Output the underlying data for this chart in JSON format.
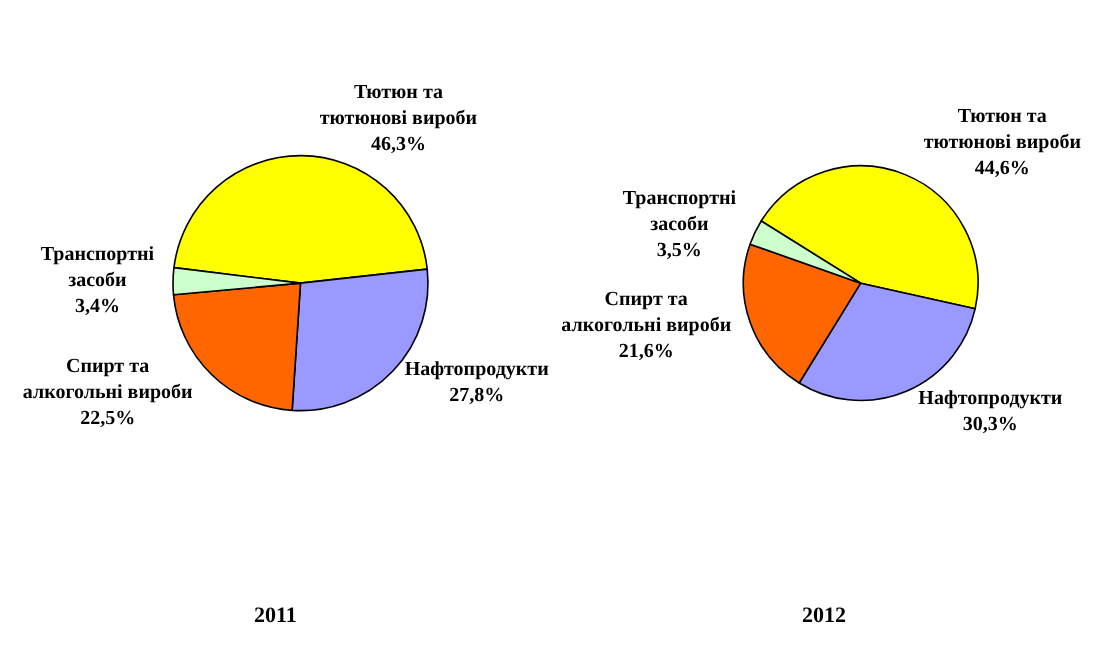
{
  "chart_data": [
    {
      "type": "pie",
      "title": "2011",
      "categories": [
        "Тютюн та тютюнові вироби",
        "Нафтопродукти",
        "Спирт та алкогольні вироби",
        "Транспортні засоби"
      ],
      "values": [
        46.3,
        27.8,
        22.5,
        3.4
      ],
      "value_labels": [
        "46,3%",
        "27,8%",
        "22,5%",
        "3,4%"
      ],
      "colors": [
        "#ffff00",
        "#9999ff",
        "#ff6600",
        "#ccffcc"
      ],
      "legend": false
    },
    {
      "type": "pie",
      "title": "2012",
      "categories": [
        "Тютюн та тютюнові вироби",
        "Нафтопродукти",
        "Спирт та алкогольні вироби",
        "Транспортні засоби"
      ],
      "values": [
        44.6,
        30.3,
        21.6,
        3.5
      ],
      "value_labels": [
        "44,6%",
        "30,3%",
        "21,6%",
        "3,5%"
      ],
      "colors": [
        "#ffff00",
        "#9999ff",
        "#ff6600",
        "#ccffcc"
      ],
      "legend": false
    }
  ]
}
